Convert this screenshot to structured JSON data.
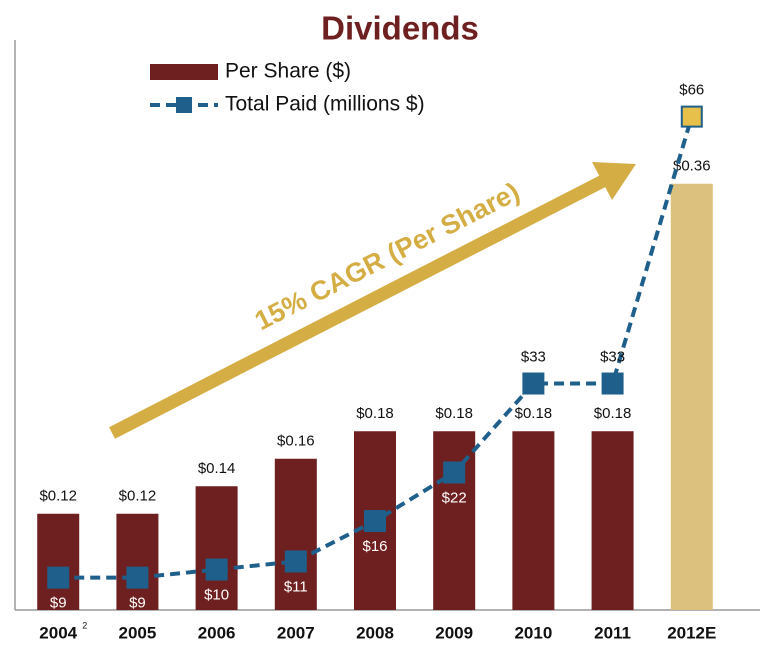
{
  "chart_data": {
    "type": "bar_line",
    "title": "Dividends",
    "categories": [
      "2004",
      "2005",
      "2006",
      "2007",
      "2008",
      "2009",
      "2010",
      "2011",
      "2012E"
    ],
    "superscript": "2",
    "annotation": "15% CAGR (Per Share)",
    "ylim": [
      0.05,
      0.45
    ],
    "y2lim": [
      5,
      73
    ],
    "series": [
      {
        "name": "Per Share ($)",
        "type": "bar",
        "color": "#6e1f1f",
        "colors": [
          "#6e1f1f",
          "#6e1f1f",
          "#6e1f1f",
          "#6e1f1f",
          "#6e1f1f",
          "#6e1f1f",
          "#6e1f1f",
          "#6e1f1f",
          "#dcc07e"
        ],
        "values": [
          0.12,
          0.12,
          0.14,
          0.16,
          0.18,
          0.18,
          0.18,
          0.18,
          0.36
        ],
        "value_labels": [
          "$0.12",
          "$0.12",
          "$0.14",
          "$0.16",
          "$0.18",
          "$0.18",
          "$0.18",
          "$0.18",
          "$0.36"
        ]
      },
      {
        "name": "Total Paid (millions $)",
        "type": "line",
        "axis": "y2",
        "color": "#1f5f8b",
        "marker_colors": [
          "#1f5f8b",
          "#1f5f8b",
          "#1f5f8b",
          "#1f5f8b",
          "#1f5f8b",
          "#1f5f8b",
          "#1f5f8b",
          "#1f5f8b",
          "#e6c04a"
        ],
        "values": [
          9,
          9,
          10,
          11,
          16,
          22,
          33,
          33,
          66
        ],
        "value_labels": [
          "$9",
          "$9",
          "$10",
          "$11",
          "$16",
          "$22",
          "$33",
          "$33",
          "$66"
        ]
      }
    ]
  }
}
